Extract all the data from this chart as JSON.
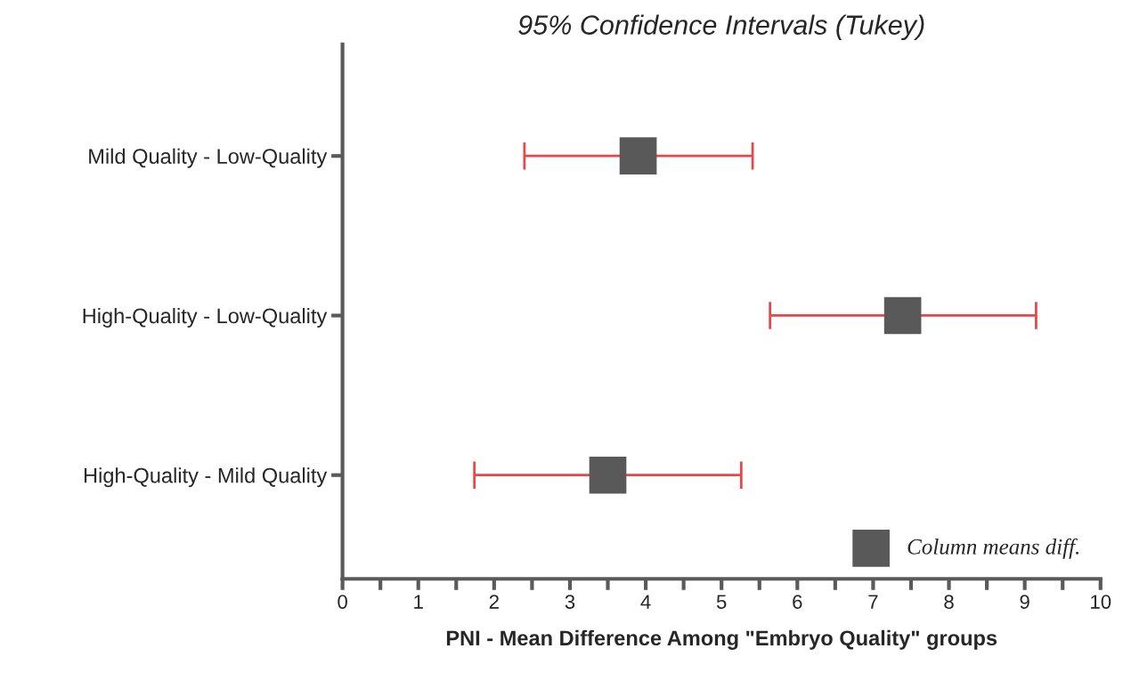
{
  "chart_data": {
    "type": "scatter",
    "orientation": "horizontal",
    "title": "95% Confidence Intervals (Tukey)",
    "xlabel": "PNI - Mean Difference Among \"Embryo Quality\" groups",
    "categories": [
      "Mild Quality - Low-Quality",
      "High-Quality - Low-Quality",
      "High-Quality - Mild Quality"
    ],
    "series": [
      {
        "name": "Column means diff.",
        "color": "#595959",
        "values": [
          3.9,
          7.39,
          3.5
        ],
        "errors": [
          [
            2.4,
            5.41
          ],
          [
            5.64,
            9.15
          ],
          [
            1.74,
            5.26
          ]
        ]
      }
    ],
    "xlim": [
      0,
      10
    ],
    "xticks": [
      0,
      {
        "value": 0.5,
        "label": null
      },
      1,
      {
        "value": 1.5,
        "label": null
      },
      2,
      {
        "value": 2.5,
        "label": null
      },
      3,
      {
        "value": 3.5,
        "label": null
      },
      4,
      {
        "value": 4.5,
        "label": null
      },
      5,
      {
        "value": 5.5,
        "label": null
      },
      6,
      {
        "value": 6.5,
        "label": null
      },
      7,
      {
        "value": 7.5,
        "label": null
      },
      8,
      {
        "value": 8.5,
        "label": null
      },
      9,
      {
        "value": 9.5,
        "label": null
      },
      10
    ],
    "marker": "square",
    "grid": false,
    "legend": "bottom right"
  }
}
